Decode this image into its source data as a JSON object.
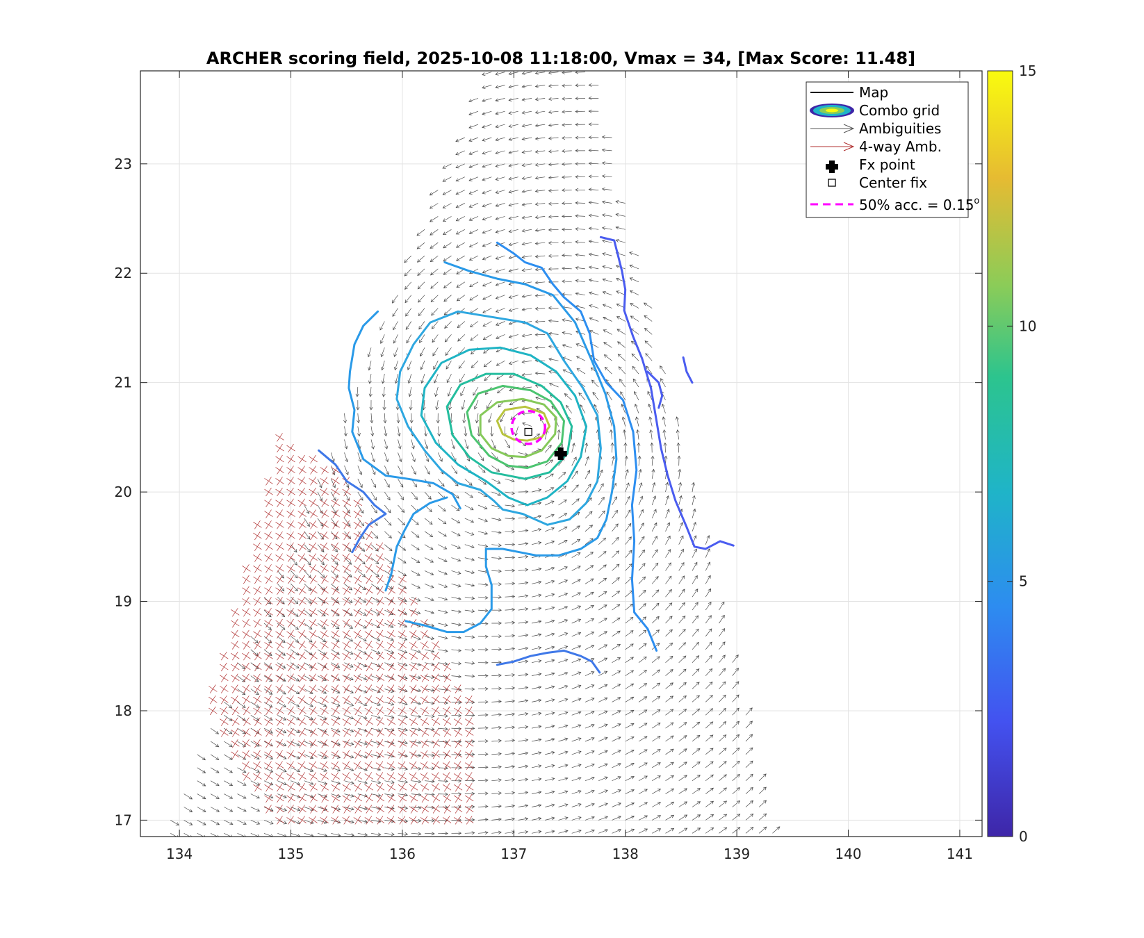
{
  "chart_data": {
    "type": "contour-vector-map",
    "title": "ARCHER scoring field, 2025-10-08 11:18:00, Vmax = 34, [Max Score: 11.48]",
    "xlabel": "",
    "ylabel": "",
    "xlim": [
      133.65,
      141.2
    ],
    "ylim": [
      16.85,
      23.85
    ],
    "xticks": [
      "134",
      "135",
      "136",
      "137",
      "138",
      "139",
      "140",
      "141"
    ],
    "yticks": [
      "17",
      "18",
      "19",
      "20",
      "21",
      "22",
      "23"
    ],
    "grid": true,
    "colorbar": {
      "min": 0,
      "max": 15,
      "ticks": [
        "0",
        "5",
        "10",
        "15"
      ],
      "colormap": [
        "#3e26a8",
        "#4352f0",
        "#2d8cf0",
        "#1fb4c8",
        "#2cc48e",
        "#8bcc58",
        "#e6bb32",
        "#f9fb0e"
      ]
    },
    "legend": {
      "location": "top-right",
      "entries": [
        {
          "label": "Map",
          "style": "line",
          "color": "#000000"
        },
        {
          "label": "Combo grid",
          "style": "contour"
        },
        {
          "label": "Ambiguities",
          "style": "arrow",
          "color": "#555555"
        },
        {
          "label": "4-way Amb.",
          "style": "arrow",
          "color": "#b03030"
        },
        {
          "label": "Fx point",
          "style": "plus-marker",
          "color": "#000000"
        },
        {
          "label": "Center fix",
          "style": "square-marker",
          "color": "#000000"
        },
        {
          "label": "50% acc. = 0.15",
          "superscript": "o",
          "style": "dashed",
          "color": "#ff00ff"
        }
      ]
    },
    "fx_point": {
      "lon": 137.42,
      "lat": 20.35
    },
    "center_fix": {
      "lon": 137.13,
      "lat": 20.55
    },
    "accuracy_circle": {
      "lon": 137.13,
      "lat": 20.59,
      "radius_deg": 0.15
    },
    "contours": [
      {
        "level": 3.2,
        "color": "#4a5cf0",
        "points": [
          [
            137.78,
            22.33
          ],
          [
            137.9,
            22.3
          ],
          [
            137.97,
            22.02
          ],
          [
            138.0,
            21.85
          ],
          [
            137.99,
            21.66
          ],
          [
            138.07,
            21.42
          ],
          [
            138.15,
            21.22
          ],
          [
            138.23,
            20.95
          ],
          [
            138.28,
            20.65
          ],
          [
            138.32,
            20.4
          ],
          [
            138.38,
            20.15
          ],
          [
            138.45,
            19.92
          ],
          [
            138.55,
            19.68
          ],
          [
            138.62,
            19.5
          ],
          [
            138.72,
            19.48
          ],
          [
            138.85,
            19.55
          ],
          [
            138.97,
            19.51
          ]
        ]
      },
      {
        "level": 3.2,
        "color": "#4a5cf0",
        "points": [
          [
            138.2,
            21.1
          ],
          [
            138.3,
            21.0
          ],
          [
            138.33,
            20.88
          ],
          [
            138.3,
            20.77
          ]
        ]
      },
      {
        "level": 3.2,
        "color": "#4a5cf0",
        "points": [
          [
            138.52,
            21.23
          ],
          [
            138.55,
            21.1
          ],
          [
            138.6,
            21.0
          ]
        ]
      },
      {
        "level": 3.5,
        "color": "#3f78e8",
        "points": [
          [
            135.25,
            20.38
          ],
          [
            135.4,
            20.25
          ],
          [
            135.5,
            20.1
          ],
          [
            135.65,
            20.0
          ],
          [
            135.75,
            19.88
          ],
          [
            135.85,
            19.8
          ],
          [
            135.7,
            19.7
          ],
          [
            135.62,
            19.58
          ],
          [
            135.55,
            19.45
          ]
        ]
      },
      {
        "level": 3.5,
        "color": "#3f78e8",
        "points": [
          [
            136.85,
            18.42
          ],
          [
            137.0,
            18.45
          ],
          [
            137.15,
            18.5
          ],
          [
            137.3,
            18.53
          ],
          [
            137.45,
            18.55
          ],
          [
            137.6,
            18.5
          ],
          [
            137.7,
            18.45
          ],
          [
            137.77,
            18.35
          ]
        ]
      },
      {
        "level": 4.2,
        "color": "#2d8ef0",
        "points": [
          [
            136.85,
            22.28
          ],
          [
            137.0,
            22.18
          ],
          [
            137.1,
            22.1
          ],
          [
            137.25,
            22.05
          ],
          [
            137.35,
            21.9
          ],
          [
            137.45,
            21.78
          ],
          [
            137.6,
            21.65
          ],
          [
            137.68,
            21.45
          ],
          [
            137.72,
            21.2
          ],
          [
            137.83,
            21.0
          ],
          [
            137.98,
            20.84
          ],
          [
            138.07,
            20.55
          ],
          [
            138.1,
            20.2
          ],
          [
            138.06,
            19.88
          ],
          [
            138.08,
            19.55
          ],
          [
            138.06,
            19.2
          ],
          [
            138.08,
            18.9
          ],
          [
            138.2,
            18.75
          ],
          [
            138.28,
            18.55
          ]
        ]
      },
      {
        "level": 4.8,
        "color": "#2a9ae8",
        "points": [
          [
            135.78,
            21.65
          ],
          [
            135.65,
            21.52
          ],
          [
            135.57,
            21.35
          ],
          [
            135.53,
            21.1
          ],
          [
            135.52,
            20.95
          ],
          [
            135.57,
            20.75
          ],
          [
            135.55,
            20.55
          ],
          [
            135.65,
            20.3
          ],
          [
            135.85,
            20.15
          ],
          [
            136.05,
            20.12
          ],
          [
            136.28,
            20.08
          ],
          [
            136.45,
            19.98
          ],
          [
            136.52,
            19.85
          ]
        ]
      },
      {
        "level": 4.8,
        "color": "#2a9ae8",
        "points": [
          [
            135.85,
            19.1
          ],
          [
            135.9,
            19.25
          ],
          [
            135.95,
            19.5
          ],
          [
            136.02,
            19.65
          ],
          [
            136.1,
            19.8
          ],
          [
            136.25,
            19.9
          ],
          [
            136.4,
            19.95
          ]
        ]
      },
      {
        "level": 4.8,
        "color": "#2a9ae8",
        "points": [
          [
            136.03,
            18.82
          ],
          [
            136.2,
            18.78
          ],
          [
            136.4,
            18.72
          ],
          [
            136.55,
            18.72
          ],
          [
            136.7,
            18.8
          ],
          [
            136.8,
            18.93
          ],
          [
            136.8,
            19.15
          ],
          [
            136.75,
            19.32
          ],
          [
            136.75,
            19.48
          ],
          [
            136.9,
            19.48
          ],
          [
            137.05,
            19.45
          ],
          [
            137.2,
            19.42
          ],
          [
            137.4,
            19.42
          ],
          [
            137.6,
            19.48
          ],
          [
            137.75,
            19.58
          ],
          [
            137.83,
            19.75
          ],
          [
            137.88,
            20.0
          ],
          [
            137.92,
            20.3
          ],
          [
            137.9,
            20.6
          ],
          [
            137.82,
            20.9
          ],
          [
            137.7,
            21.2
          ],
          [
            137.55,
            21.55
          ],
          [
            137.35,
            21.8
          ],
          [
            137.1,
            21.9
          ],
          [
            136.85,
            21.95
          ],
          [
            136.6,
            22.02
          ],
          [
            136.38,
            22.1
          ]
        ]
      },
      {
        "level": 5.8,
        "color": "#2ea7e0",
        "points": [
          [
            137.08,
            19.8
          ],
          [
            137.3,
            19.7
          ],
          [
            137.5,
            19.75
          ],
          [
            137.65,
            19.9
          ],
          [
            137.75,
            20.1
          ],
          [
            137.78,
            20.4
          ],
          [
            137.75,
            20.7
          ],
          [
            137.62,
            20.95
          ],
          [
            137.45,
            21.2
          ],
          [
            137.3,
            21.45
          ],
          [
            137.1,
            21.55
          ],
          [
            136.8,
            21.6
          ],
          [
            136.5,
            21.65
          ],
          [
            136.25,
            21.55
          ],
          [
            136.1,
            21.35
          ],
          [
            135.98,
            21.1
          ],
          [
            135.95,
            20.85
          ],
          [
            136.05,
            20.6
          ],
          [
            136.2,
            20.38
          ],
          [
            136.35,
            20.2
          ],
          [
            136.5,
            20.08
          ],
          [
            136.7,
            20.02
          ],
          [
            136.82,
            19.92
          ],
          [
            136.9,
            19.84
          ],
          [
            137.08,
            19.8
          ]
        ]
      },
      {
        "level": 6.8,
        "color": "#1fb4c4",
        "points": [
          [
            137.12,
            19.88
          ],
          [
            137.3,
            19.95
          ],
          [
            137.48,
            20.1
          ],
          [
            137.6,
            20.32
          ],
          [
            137.65,
            20.6
          ],
          [
            137.55,
            20.88
          ],
          [
            137.38,
            21.1
          ],
          [
            137.15,
            21.25
          ],
          [
            136.88,
            21.32
          ],
          [
            136.6,
            21.3
          ],
          [
            136.35,
            21.18
          ],
          [
            136.2,
            20.95
          ],
          [
            136.17,
            20.7
          ],
          [
            136.3,
            20.45
          ],
          [
            136.5,
            20.25
          ],
          [
            136.75,
            20.1
          ],
          [
            136.95,
            19.95
          ],
          [
            137.12,
            19.88
          ]
        ]
      },
      {
        "level": 7.8,
        "color": "#24bd9e",
        "points": [
          [
            137.1,
            20.12
          ],
          [
            137.32,
            20.18
          ],
          [
            137.48,
            20.35
          ],
          [
            137.52,
            20.6
          ],
          [
            137.42,
            20.82
          ],
          [
            137.25,
            20.97
          ],
          [
            137.0,
            21.08
          ],
          [
            136.75,
            21.08
          ],
          [
            136.52,
            20.98
          ],
          [
            136.4,
            20.78
          ],
          [
            136.45,
            20.52
          ],
          [
            136.6,
            20.32
          ],
          [
            136.8,
            20.18
          ],
          [
            137.1,
            20.12
          ]
        ]
      },
      {
        "level": 8.8,
        "color": "#4cc470",
        "points": [
          [
            137.12,
            20.22
          ],
          [
            137.3,
            20.28
          ],
          [
            137.43,
            20.45
          ],
          [
            137.45,
            20.65
          ],
          [
            137.33,
            20.83
          ],
          [
            137.15,
            20.93
          ],
          [
            136.9,
            20.97
          ],
          [
            136.68,
            20.9
          ],
          [
            136.58,
            20.73
          ],
          [
            136.62,
            20.52
          ],
          [
            136.78,
            20.33
          ],
          [
            136.95,
            20.24
          ],
          [
            137.12,
            20.22
          ]
        ]
      },
      {
        "level": 9.8,
        "color": "#86c95a",
        "points": [
          [
            137.1,
            20.32
          ],
          [
            137.25,
            20.38
          ],
          [
            137.37,
            20.53
          ],
          [
            137.38,
            20.68
          ],
          [
            137.27,
            20.8
          ],
          [
            137.08,
            20.85
          ],
          [
            136.85,
            20.82
          ],
          [
            136.7,
            20.7
          ],
          [
            136.7,
            20.53
          ],
          [
            136.8,
            20.4
          ],
          [
            136.95,
            20.33
          ],
          [
            137.1,
            20.32
          ]
        ]
      },
      {
        "level": 10.8,
        "color": "#b8c43e",
        "points": [
          [
            137.12,
            20.47
          ],
          [
            137.25,
            20.5
          ],
          [
            137.32,
            20.6
          ],
          [
            137.27,
            20.72
          ],
          [
            137.1,
            20.78
          ],
          [
            136.92,
            20.75
          ],
          [
            136.85,
            20.65
          ],
          [
            136.9,
            20.53
          ],
          [
            137.0,
            20.48
          ],
          [
            137.12,
            20.47
          ]
        ]
      }
    ]
  }
}
